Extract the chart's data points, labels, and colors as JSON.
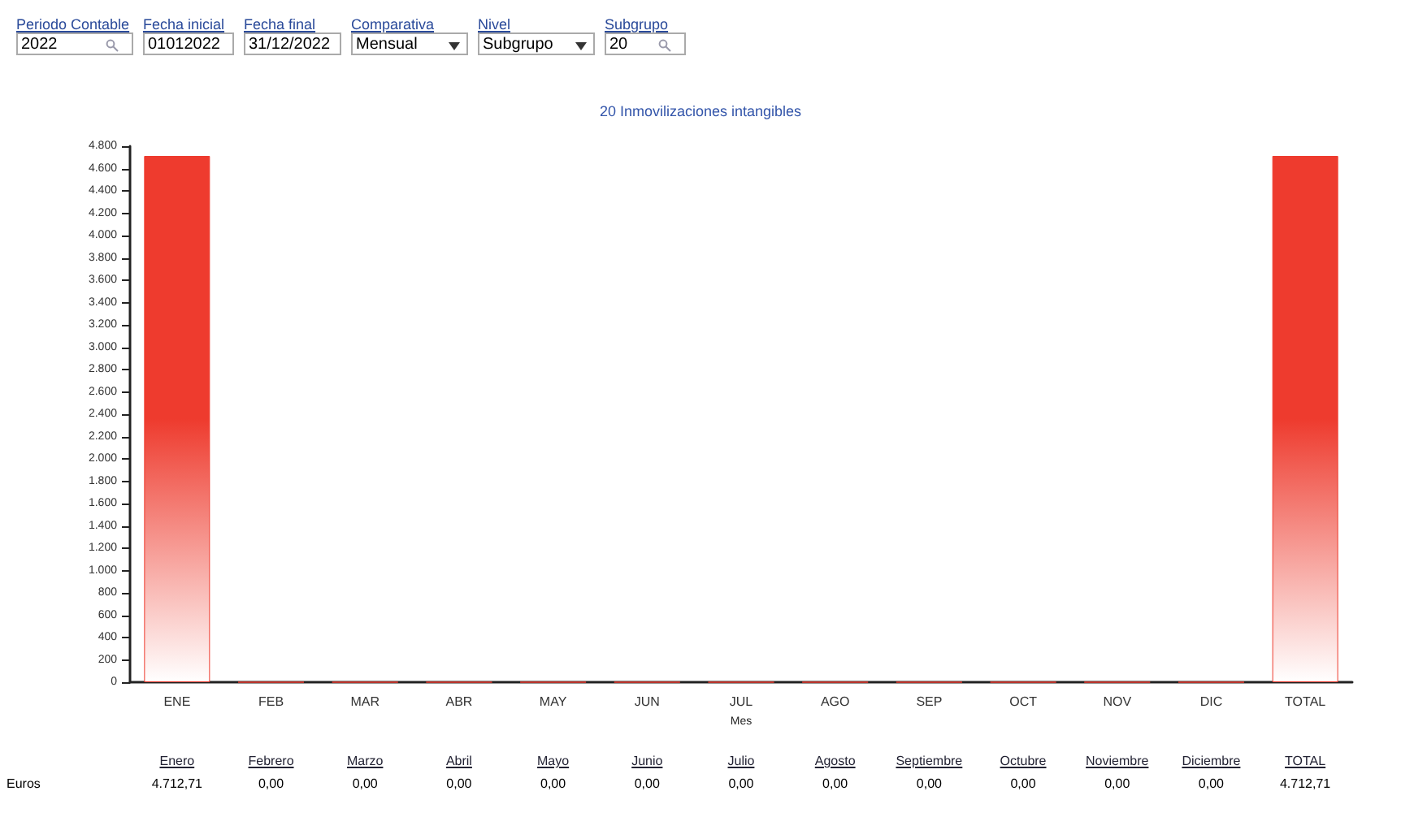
{
  "chart_data": {
    "type": "bar",
    "title": "20 Inmovilizaciones intangibles",
    "xlabel": "Mes",
    "categories": [
      "ENE",
      "FEB",
      "MAR",
      "ABR",
      "MAY",
      "JUN",
      "JUL",
      "AGO",
      "SEP",
      "OCT",
      "NOV",
      "DIC",
      "TOTAL"
    ],
    "values": [
      4712.71,
      0,
      0,
      0,
      0,
      0,
      0,
      0,
      0,
      0,
      0,
      0,
      4712.71
    ],
    "value_labels": [
      "4.712,71",
      "0,00",
      "0,00",
      "0,00",
      "0,00",
      "0,00",
      "0,00",
      "0,00",
      "0,00",
      "0,00",
      "0,00",
      "0,00",
      "4.712,71"
    ],
    "color": "#ee3b2e",
    "ylim": [
      0,
      4800
    ],
    "yticks": [
      0,
      200,
      400,
      600,
      800,
      {
        "value": 1000,
        "label": "1.000"
      },
      {
        "value": 1200,
        "label": "1.200"
      },
      {
        "value": 1400,
        "label": "1.400"
      },
      {
        "value": 1600,
        "label": "1.600"
      },
      {
        "value": 1800,
        "label": "1.800"
      },
      {
        "value": 2000,
        "label": "2.000"
      },
      {
        "value": 2200,
        "label": "2.200"
      },
      {
        "value": 2400,
        "label": "2.400"
      },
      {
        "value": 2600,
        "label": "2.600"
      },
      {
        "value": 2800,
        "label": "2.800"
      },
      {
        "value": 3000,
        "label": "3.000"
      },
      {
        "value": 3200,
        "label": "3.200"
      },
      {
        "value": 3400,
        "label": "3.400"
      },
      {
        "value": 3600,
        "label": "3.600"
      },
      {
        "value": 3800,
        "label": "3.800"
      },
      {
        "value": 4000,
        "label": "4.000"
      },
      {
        "value": 4200,
        "label": "4.200"
      },
      {
        "value": 4400,
        "label": "4.400"
      },
      {
        "value": 4600,
        "label": "4.600"
      },
      {
        "value": 4800,
        "label": "4.800"
      }
    ],
    "grid": false,
    "annotations": [
      "Periodo Contable",
      "2022",
      "Fecha inicial",
      "01012022",
      "Fecha final",
      "31/12/2022",
      "Comparativa",
      "Mensual",
      "Nivel",
      "Subgrupo",
      "Subgrupo",
      "20",
      "Euros",
      "Enero",
      "Febrero",
      "Marzo",
      "Abril",
      "Mayo",
      "Junio",
      "Julio",
      "Agosto",
      "Septiembre",
      "Octubre",
      "Noviembre",
      "Diciembre",
      "TOTAL"
    ]
  }
}
